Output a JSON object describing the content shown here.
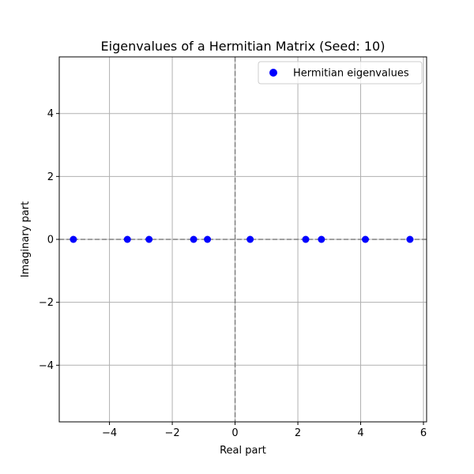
{
  "chart_data": {
    "type": "scatter",
    "title": "Eigenvalues of a Hermitian Matrix (Seed: 10)",
    "xlabel": "Real part",
    "ylabel": "Imaginary part",
    "xlim": [
      -5.6,
      6.1
    ],
    "ylim": [
      -5.8,
      5.8
    ],
    "xticks": [
      -4,
      -2,
      0,
      2,
      4,
      6
    ],
    "yticks": [
      -4,
      -2,
      0,
      2,
      4
    ],
    "xtick_labels": [
      "−4",
      "−2",
      "0",
      "2",
      "4",
      "6"
    ],
    "ytick_labels": [
      "−4",
      "−2",
      "0",
      "2",
      "4"
    ],
    "grid": true,
    "legend_position": "top-right",
    "reference_lines": {
      "x": 0,
      "y": 0,
      "style": "dashed",
      "color": "#808080"
    },
    "series": [
      {
        "name": "Hermitian eigenvalues",
        "color": "#0000ff",
        "points": [
          {
            "x": -5.15,
            "y": 0
          },
          {
            "x": -3.43,
            "y": 0
          },
          {
            "x": -2.74,
            "y": 0
          },
          {
            "x": -1.32,
            "y": 0
          },
          {
            "x": -0.88,
            "y": 0
          },
          {
            "x": 0.48,
            "y": 0
          },
          {
            "x": 2.25,
            "y": 0
          },
          {
            "x": 2.75,
            "y": 0
          },
          {
            "x": 4.15,
            "y": 0
          },
          {
            "x": 5.57,
            "y": 0
          }
        ]
      }
    ]
  }
}
